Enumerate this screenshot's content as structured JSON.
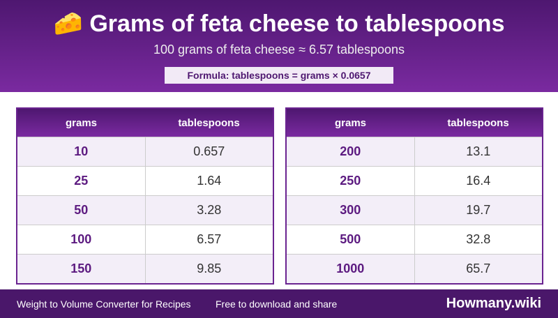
{
  "header": {
    "icon": "🧀",
    "title": "Grams of feta cheese to tablespoons",
    "subtitle": "100 grams of feta cheese ≈ 6.57 tablespoons",
    "formula": "Formula: tablespoons = grams × 0.0657"
  },
  "tables": [
    {
      "columns": [
        "grams",
        "tablespoons"
      ],
      "rows": [
        [
          "10",
          "0.657"
        ],
        [
          "25",
          "1.64"
        ],
        [
          "50",
          "3.28"
        ],
        [
          "100",
          "6.57"
        ],
        [
          "150",
          "9.85"
        ]
      ]
    },
    {
      "columns": [
        "grams",
        "tablespoons"
      ],
      "rows": [
        [
          "200",
          "13.1"
        ],
        [
          "250",
          "16.4"
        ],
        [
          "300",
          "19.7"
        ],
        [
          "500",
          "32.8"
        ],
        [
          "1000",
          "65.7"
        ]
      ]
    }
  ],
  "footer": {
    "left": "Weight to Volume Converter for Recipes",
    "middle": "Free to download and share",
    "brand": "Howmany.wiki"
  }
}
